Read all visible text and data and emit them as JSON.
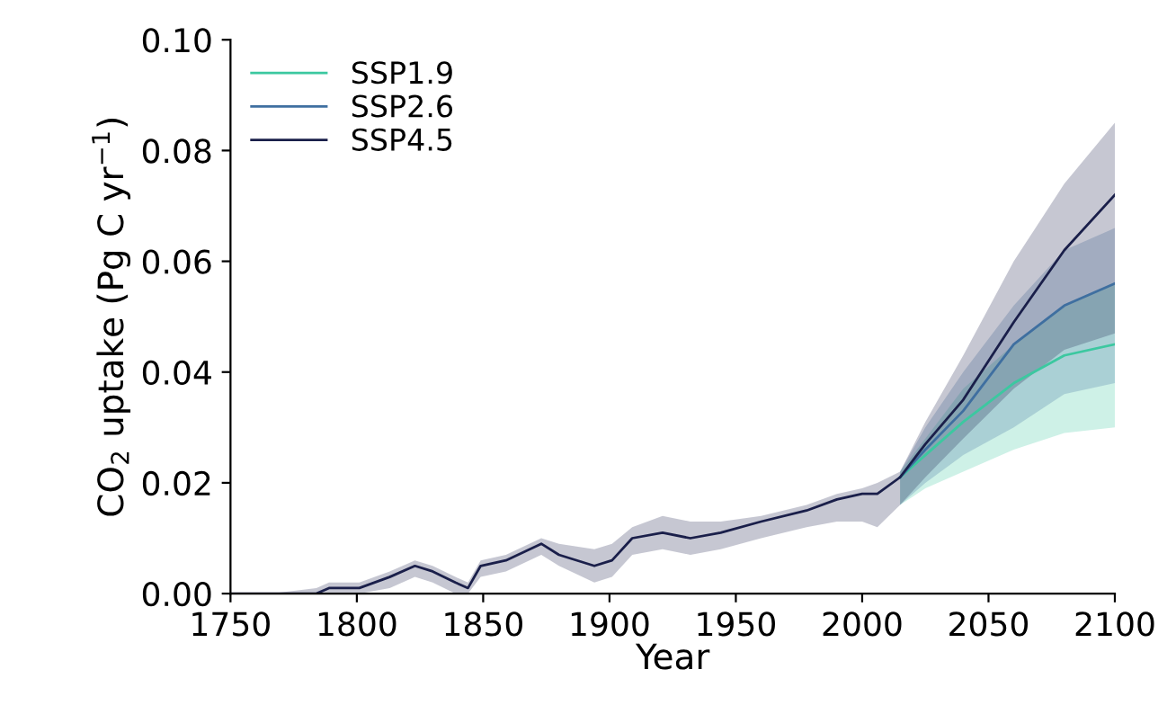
{
  "chart_data": {
    "type": "line",
    "xlabel": "Year",
    "ylabel": "CO$_{2}$ uptake (Pg C yr$^{−1}$)",
    "xlim": [
      1750,
      2100
    ],
    "xticks": [
      1750,
      1800,
      1850,
      1900,
      1950,
      2000,
      2050,
      2100
    ],
    "ylim": [
      0,
      0.1
    ],
    "yticks": [
      {
        "value": 0,
        "label": "0.00"
      },
      {
        "value": 0.02,
        "label": "0.02"
      },
      {
        "value": 0.04,
        "label": "0.04"
      },
      {
        "value": 0.06,
        "label": "0.06"
      },
      {
        "value": 0.08,
        "label": "0.08"
      },
      {
        "value": 0.1,
        "label": "0.10"
      }
    ],
    "grid": false,
    "legend": "top left",
    "marker": "none",
    "line_style": "solid",
    "series": [
      {
        "name": "SSP1.9",
        "color": "#3cc8a0",
        "x": [
          2015,
          2025,
          2040,
          2060,
          2080,
          2100
        ],
        "values": [
          0.021,
          0.025,
          0.031,
          0.038,
          0.043,
          0.045
        ],
        "lower": [
          0.016,
          0.019,
          0.022,
          0.026,
          0.029,
          0.03
        ],
        "upper": [
          0.022,
          0.028,
          0.037,
          0.045,
          0.052,
          0.056
        ]
      },
      {
        "name": "SSP2.6",
        "color": "#3f6fa0",
        "x": [
          2015,
          2025,
          2040,
          2060,
          2080,
          2100
        ],
        "values": [
          0.021,
          0.026,
          0.033,
          0.045,
          0.052,
          0.056
        ],
        "lower": [
          0.016,
          0.02,
          0.025,
          0.03,
          0.036,
          0.038
        ],
        "upper": [
          0.022,
          0.03,
          0.04,
          0.052,
          0.062,
          0.066
        ]
      },
      {
        "name": "SSP4.5",
        "color": "#1a1f4a",
        "x": [
          1750,
          1766,
          1784,
          1789,
          1801,
          1813,
          1823,
          1830,
          1839,
          1844,
          1849,
          1859,
          1873,
          1880,
          1894,
          1901,
          1909,
          1921,
          1932,
          1944,
          1960,
          1978,
          1990,
          2000,
          2006,
          2015,
          2025,
          2040,
          2060,
          2080,
          2100
        ],
        "values": [
          0.0,
          0.0,
          0.0,
          0.001,
          0.001,
          0.003,
          0.005,
          0.004,
          0.002,
          0.001,
          0.005,
          0.006,
          0.009,
          0.007,
          0.005,
          0.006,
          0.01,
          0.011,
          0.01,
          0.011,
          0.013,
          0.015,
          0.017,
          0.018,
          0.018,
          0.021,
          0.027,
          0.035,
          0.049,
          0.062,
          0.072
        ],
        "lower": [
          0,
          0,
          0,
          0,
          0,
          0.001,
          0.003,
          0.002,
          0,
          0,
          0.003,
          0.004,
          0.007,
          0.005,
          0.002,
          0.003,
          0.007,
          0.008,
          0.007,
          0.008,
          0.01,
          0.012,
          0.013,
          0.013,
          0.012,
          0.016,
          0.021,
          0.028,
          0.037,
          0.044,
          0.047
        ],
        "upper": [
          0,
          0,
          0.001,
          0.002,
          0.002,
          0.004,
          0.006,
          0.005,
          0.003,
          0.002,
          0.006,
          0.007,
          0.01,
          0.009,
          0.008,
          0.009,
          0.012,
          0.014,
          0.013,
          0.013,
          0.014,
          0.016,
          0.018,
          0.019,
          0.02,
          0.022,
          0.031,
          0.043,
          0.06,
          0.074,
          0.085
        ]
      }
    ]
  }
}
